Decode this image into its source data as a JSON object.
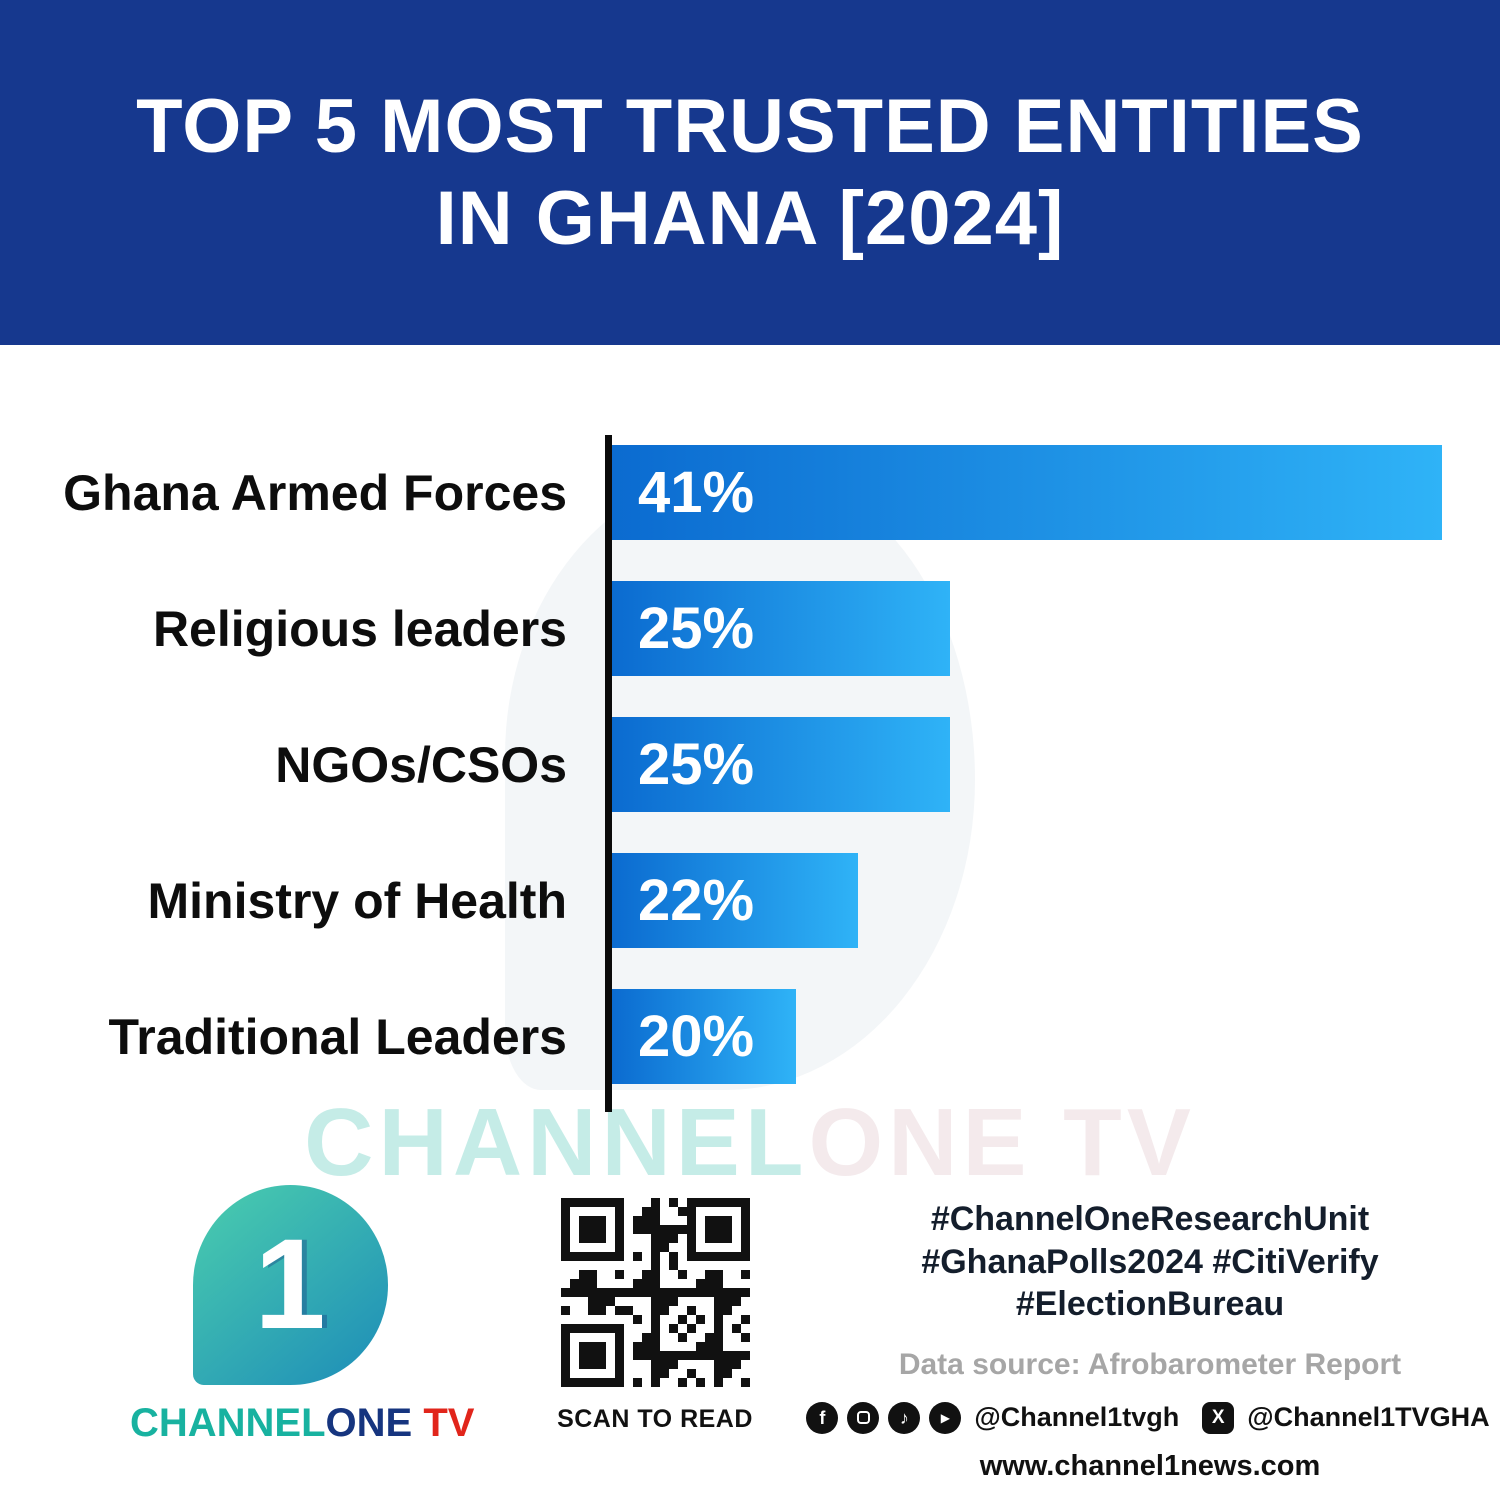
{
  "header": {
    "title_line1": "TOP 5 MOST TRUSTED ENTITIES",
    "title_line2": "IN GHANA [2024]"
  },
  "chart_data": {
    "type": "bar",
    "orientation": "horizontal",
    "title": "Top 5 Most Trusted Entities in Ghana [2024]",
    "categories": [
      "Ghana Armed Forces",
      "Religious leaders",
      "NGOs/CSOs",
      "Ministry of Health",
      "Traditional Leaders"
    ],
    "values": [
      41,
      25,
      25,
      22,
      20
    ],
    "value_labels": [
      "41%",
      "25%",
      "25%",
      "22%",
      "20%"
    ],
    "xlabel": "",
    "ylabel": "",
    "xlim": [
      14,
      41
    ],
    "grid": false,
    "legend": false,
    "bar_gradient": [
      "#0b6bd0",
      "#2fb3f7"
    ]
  },
  "watermark": {
    "part1": "CHANNEL",
    "part2": "ONE TV"
  },
  "footer": {
    "logo": {
      "numeral": "1",
      "wordmark_channel": "CHANNEL",
      "wordmark_one": "ONE",
      "wordmark_tv": " TV"
    },
    "qr_caption": "SCAN TO READ",
    "hashtags": [
      "#ChannelOneResearchUnit",
      "#GhanaPolls2024 #CitiVerify",
      "#ElectionBureau"
    ],
    "data_source": "Data source: Afrobarometer Report",
    "social": {
      "facebook_glyph": "f",
      "tiktok_glyph": "♪",
      "youtube_glyph": "▶",
      "x_glyph": "X",
      "handle1": "@Channel1tvgh",
      "handle2": "@Channel1TVGHA"
    },
    "website": "www.channel1news.com"
  },
  "colors": {
    "header_bg": "#16388e",
    "bar_start": "#0b6bd0",
    "bar_end": "#2fb3f7",
    "axis": "#0b0b0b",
    "label_text": "#0d0d0d",
    "value_text": "#ffffff",
    "brand_teal": "#18b2a0",
    "brand_navy": "#16357f",
    "brand_red": "#e1251b",
    "hashtag_text": "#141e2c",
    "source_text": "#a6a6a6"
  }
}
